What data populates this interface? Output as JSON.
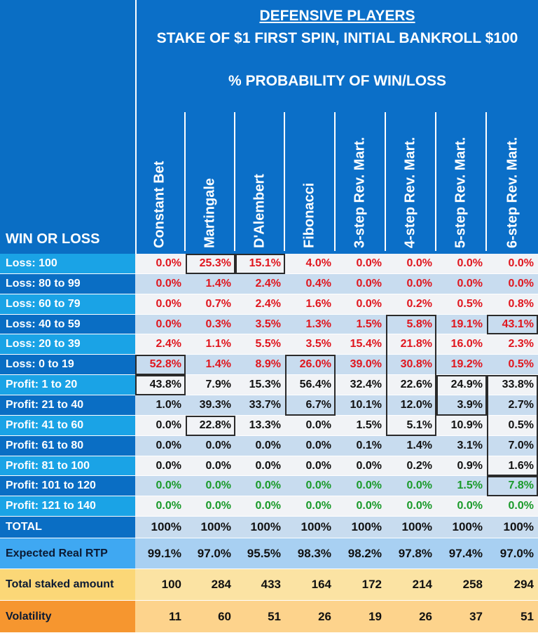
{
  "title_line1": "DEFENSIVE PLAYERS",
  "title_line2": "STAKE OF $1 FIRST SPIN, INITIAL BANKROLL $100",
  "title_line3": "% PROBABILITY OF WIN/LOSS",
  "row_header_label": "WIN OR LOSS",
  "chart_data": {
    "type": "table",
    "columns": [
      "Constant Bet",
      "Martingale",
      "D'Alembert",
      "Fibonacci",
      "3-step Rev. Mart.",
      "4-step Rev. Mart.",
      "5-step Rev. Mart.",
      "6-step Rev. Mart."
    ],
    "rows": [
      {
        "label": "Loss: 100",
        "values": [
          "0.0%",
          "25.3%",
          "15.1%",
          "4.0%",
          "0.0%",
          "0.0%",
          "0.0%",
          "0.0%"
        ],
        "color": "#e0161e"
      },
      {
        "label": "Loss: 80 to 99",
        "values": [
          "0.0%",
          "1.4%",
          "2.4%",
          "0.4%",
          "0.0%",
          "0.0%",
          "0.0%",
          "0.0%"
        ],
        "color": "#e0161e"
      },
      {
        "label": "Loss: 60 to 79",
        "values": [
          "0.0%",
          "0.7%",
          "2.4%",
          "1.6%",
          "0.0%",
          "0.2%",
          "0.5%",
          "0.8%"
        ],
        "color": "#e0161e"
      },
      {
        "label": "Loss: 40 to 59",
        "values": [
          "0.0%",
          "0.3%",
          "3.5%",
          "1.3%",
          "1.5%",
          "5.8%",
          "19.1%",
          "43.1%"
        ],
        "color": "#e0161e"
      },
      {
        "label": "Loss: 20 to 39",
        "values": [
          "2.4%",
          "1.1%",
          "5.5%",
          "3.5%",
          "15.4%",
          "21.8%",
          "16.0%",
          "2.3%"
        ],
        "color": "#e0161e"
      },
      {
        "label": "Loss: 0 to 19",
        "values": [
          "52.8%",
          "1.4%",
          "8.9%",
          "26.0%",
          "39.0%",
          "30.8%",
          "19.2%",
          "0.5%"
        ],
        "color": "#e0161e"
      },
      {
        "label": "Profit: 1 to 20",
        "values": [
          "43.8%",
          "7.9%",
          "15.3%",
          "56.4%",
          "32.4%",
          "22.6%",
          "24.9%",
          "33.8%"
        ],
        "color": "#111111"
      },
      {
        "label": "Profit: 21 to 40",
        "values": [
          "1.0%",
          "39.3%",
          "33.7%",
          "6.7%",
          "10.1%",
          "12.0%",
          "3.9%",
          "2.7%"
        ],
        "color": "#111111"
      },
      {
        "label": "Profit: 41 to 60",
        "values": [
          "0.0%",
          "22.8%",
          "13.3%",
          "0.0%",
          "1.5%",
          "5.1%",
          "10.9%",
          "0.5%"
        ],
        "color": "#111111"
      },
      {
        "label": "Profit: 61 to 80",
        "values": [
          "0.0%",
          "0.0%",
          "0.0%",
          "0.0%",
          "0.1%",
          "1.4%",
          "3.1%",
          "7.0%"
        ],
        "color": "#111111"
      },
      {
        "label": "Profit: 81 to 100",
        "values": [
          "0.0%",
          "0.0%",
          "0.0%",
          "0.0%",
          "0.0%",
          "0.2%",
          "0.9%",
          "1.6%"
        ],
        "color": "#111111"
      },
      {
        "label": "Profit: 101 to 120",
        "values": [
          "0.0%",
          "0.0%",
          "0.0%",
          "0.0%",
          "0.0%",
          "0.0%",
          "1.5%",
          "7.8%"
        ],
        "color": "#1a9a2a"
      },
      {
        "label": "Profit: 121 to 140",
        "values": [
          "0.0%",
          "0.0%",
          "0.0%",
          "0.0%",
          "0.0%",
          "0.0%",
          "0.0%",
          "0.0%"
        ],
        "color": "#1a9a2a"
      },
      {
        "label": "TOTAL",
        "values": [
          "100%",
          "100%",
          "100%",
          "100%",
          "100%",
          "100%",
          "100%",
          "100%"
        ],
        "color": "#111111"
      },
      {
        "label": "Expected Real RTP",
        "values": [
          "99.1%",
          "97.0%",
          "95.5%",
          "98.3%",
          "98.2%",
          "97.8%",
          "97.4%",
          "97.0%"
        ],
        "color": "#111111"
      },
      {
        "label": "Total staked amount",
        "values": [
          "100",
          "284",
          "433",
          "164",
          "172",
          "214",
          "258",
          "294"
        ],
        "color": "#111111"
      },
      {
        "label": "Volatility",
        "values": [
          "11",
          "60",
          "51",
          "26",
          "19",
          "26",
          "37",
          "51"
        ],
        "color": "#111111"
      }
    ]
  }
}
